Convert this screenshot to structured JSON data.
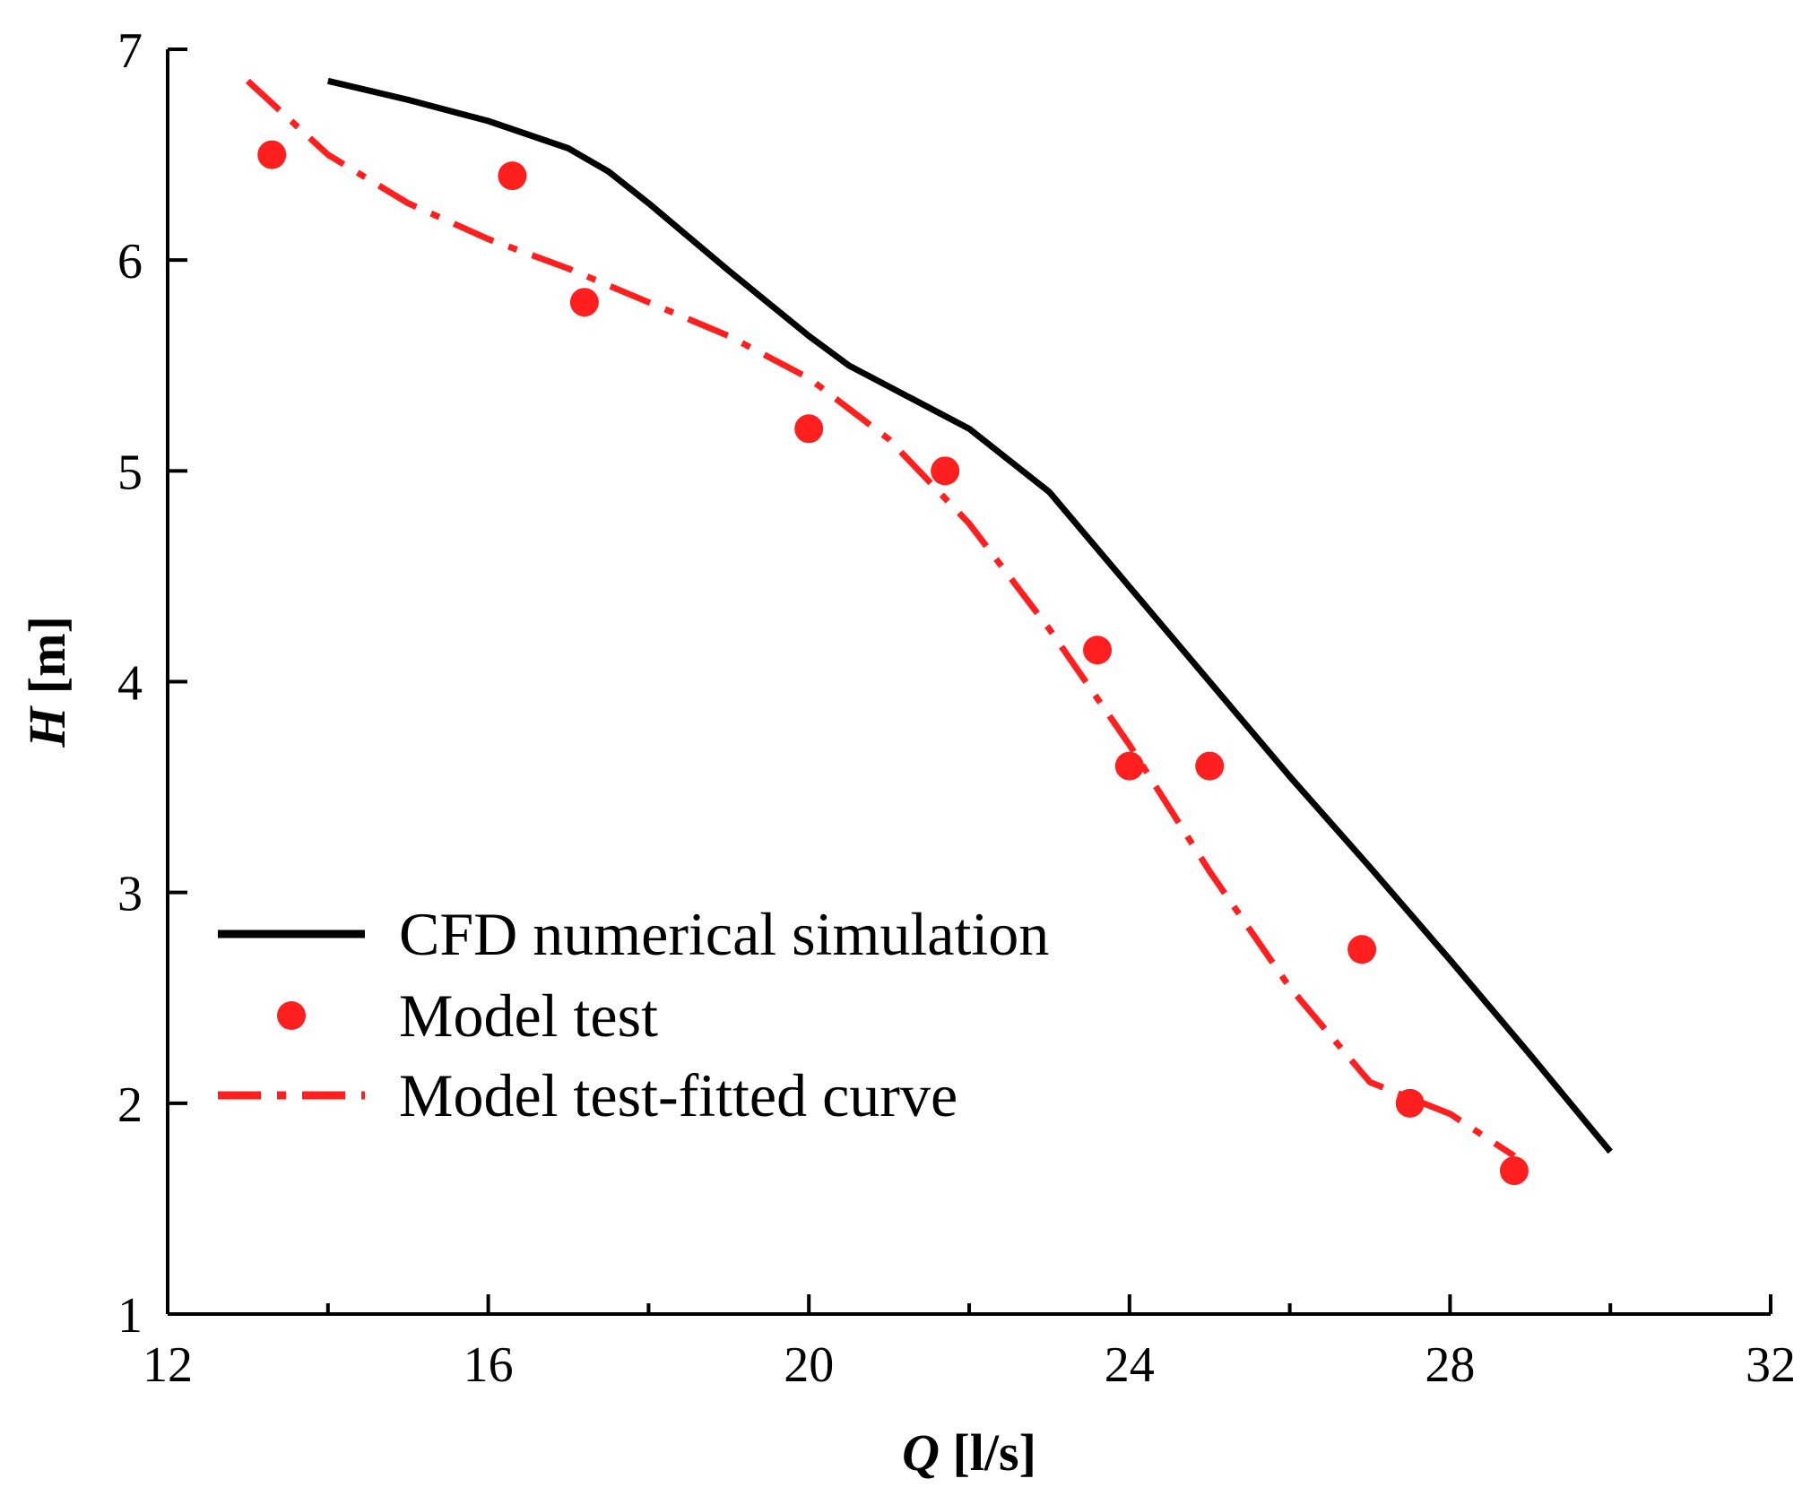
{
  "chart_data": {
    "type": "line",
    "x_axis": {
      "label_var": "Q",
      "label_unit": " [l/s]",
      "range": [
        12,
        32
      ],
      "major_ticks": [
        12,
        16,
        20,
        24,
        28,
        32
      ],
      "minor_ticks": [
        14,
        18,
        22,
        26,
        30
      ]
    },
    "y_axis": {
      "label_var": "H",
      "label_unit": " [m]",
      "range": [
        1,
        7
      ],
      "major_ticks": [
        1,
        2,
        3,
        4,
        5,
        6,
        7
      ]
    },
    "grid": false,
    "legend_position": "bottom-left",
    "series": [
      {
        "name": "CFD numerical simulation",
        "style": "solid-line",
        "color": "#000000",
        "x": [
          14,
          15,
          16,
          17,
          17.5,
          18,
          19,
          20,
          20.5,
          21,
          22,
          23,
          24,
          25,
          26,
          27,
          28,
          29,
          30
        ],
        "y": [
          6.85,
          6.76,
          6.66,
          6.53,
          6.42,
          6.27,
          5.95,
          5.64,
          5.5,
          5.4,
          5.2,
          4.9,
          4.45,
          4.0,
          3.55,
          3.12,
          2.68,
          2.23,
          1.77
        ]
      },
      {
        "name": "Model test",
        "style": "markers",
        "color": "#ff1f1f",
        "x": [
          13.3,
          16.3,
          17.2,
          20.0,
          21.7,
          23.6,
          24.0,
          25.0,
          26.9,
          27.5,
          28.8
        ],
        "y": [
          6.5,
          6.4,
          5.8,
          5.2,
          5.0,
          4.15,
          3.6,
          3.6,
          2.73,
          2.0,
          1.68
        ]
      },
      {
        "name": "Model test-fitted curve",
        "style": "dash-dot-line",
        "color": "#ff1f1f",
        "x": [
          13.0,
          14.0,
          15.0,
          16.0,
          17.0,
          18.0,
          19.0,
          20.0,
          21.0,
          22.0,
          23.0,
          24.0,
          25.0,
          26.0,
          27.0,
          28.0,
          28.8
        ],
        "y": [
          6.85,
          6.5,
          6.27,
          6.1,
          5.96,
          5.8,
          5.64,
          5.44,
          5.15,
          4.75,
          4.25,
          3.7,
          3.1,
          2.55,
          2.1,
          1.95,
          1.75
        ]
      }
    ]
  }
}
